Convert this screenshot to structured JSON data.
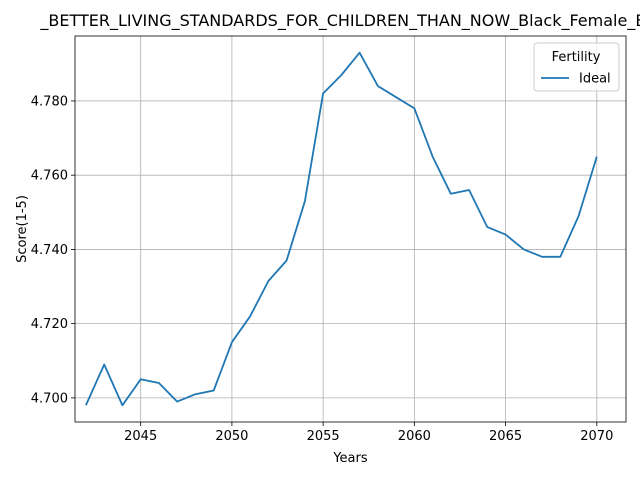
{
  "chart_data": {
    "type": "line",
    "title": "_BETTER_LIVING_STANDARDS_FOR_CHILDREN_THAN_NOW_Black_Female_Bel",
    "xlabel": "Years",
    "ylabel": "Score(1-5)",
    "xlim": [
      2041.4,
      2071.6
    ],
    "ylim": [
      4.6935,
      4.7975
    ],
    "xticks": [
      2045,
      2050,
      2055,
      2060,
      2065,
      2070
    ],
    "yticks": [
      4.7,
      4.72,
      4.74,
      4.76,
      4.78
    ],
    "ytick_labels": [
      "4.700",
      "4.720",
      "4.740",
      "4.760",
      "4.780"
    ],
    "grid": true,
    "legend": {
      "title": "Fertility",
      "placement": "top-right"
    },
    "series": [
      {
        "name": "Ideal",
        "color": "#1f77b4",
        "x": [
          2042,
          2043,
          2044,
          2045,
          2046,
          2047,
          2048,
          2049,
          2050,
          2051,
          2052,
          2053,
          2054,
          2055,
          2056,
          2057,
          2058,
          2059,
          2060,
          2061,
          2062,
          2063,
          2064,
          2065,
          2066,
          2067,
          2068,
          2069,
          2070
        ],
        "y": [
          4.698,
          4.709,
          4.698,
          4.705,
          4.704,
          4.699,
          4.701,
          4.702,
          4.715,
          4.722,
          4.7315,
          4.737,
          4.753,
          4.782,
          4.787,
          4.793,
          4.784,
          4.781,
          4.778,
          4.765,
          4.755,
          4.756,
          4.746,
          4.744,
          4.74,
          4.738,
          4.738,
          4.749,
          4.765
        ]
      }
    ]
  }
}
